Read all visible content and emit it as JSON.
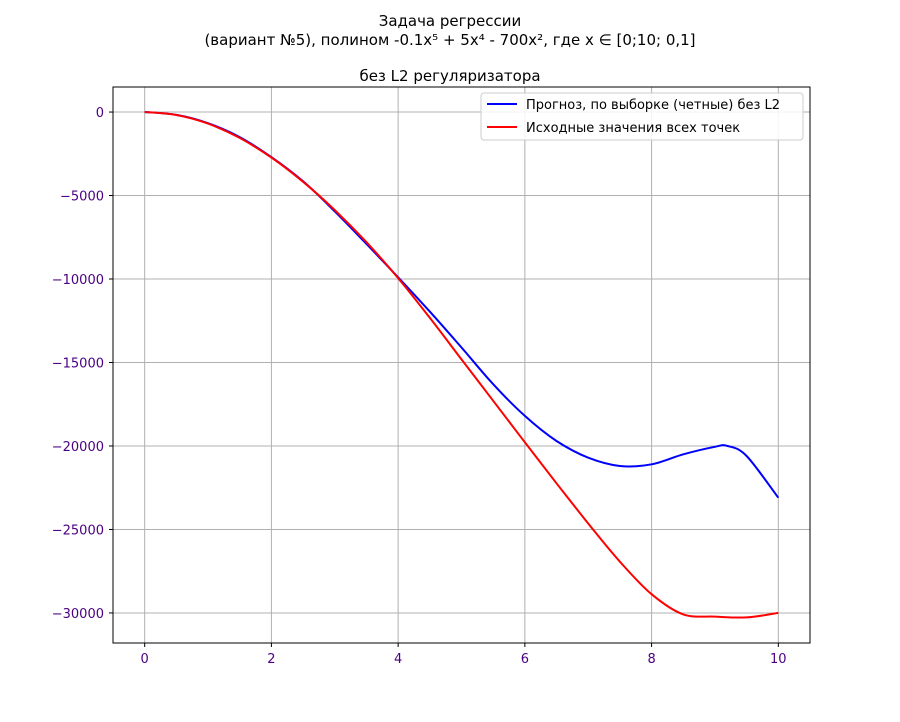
{
  "figure": {
    "title_line1": "Задача регрессии",
    "title_line2": "(вариант №5), полином -0.1x⁵ + 5x⁴ - 700x², где x ∈ [0;10; 0,1]"
  },
  "chart_data": {
    "type": "line",
    "title": "без L2 регуляризатора",
    "xlabel": "",
    "ylabel": "",
    "xlim": [
      -0.5,
      10.5
    ],
    "ylim": [
      -31800,
      1500
    ],
    "x_ticks": [
      0,
      2,
      4,
      6,
      8,
      10
    ],
    "x_tick_labels": [
      "0",
      "2",
      "4",
      "6",
      "8",
      "10"
    ],
    "y_ticks": [
      0,
      -5000,
      -10000,
      -15000,
      -20000,
      -25000,
      -30000
    ],
    "y_tick_labels": [
      "0",
      "−5000",
      "−10000",
      "−15000",
      "−20000",
      "−25000",
      "−30000"
    ],
    "grid": true,
    "legend_position": "top-right",
    "tick_color": "#4b0082",
    "series": [
      {
        "name": "Прогноз, по выборке (четные) без L2",
        "color": "#0000ff",
        "x": [
          0,
          0.5,
          1,
          1.5,
          2,
          2.5,
          3,
          3.5,
          4,
          4.5,
          5,
          5.5,
          6,
          6.5,
          7,
          7.5,
          8,
          8.5,
          9,
          9.2,
          9.5,
          10
        ],
        "y": [
          0,
          -170,
          -670,
          -1500,
          -2700,
          -4150,
          -5950,
          -7900,
          -9900,
          -11950,
          -14100,
          -16300,
          -18200,
          -19700,
          -20700,
          -21200,
          -21100,
          -20500,
          -20050,
          -20000,
          -20600,
          -23100
        ]
      },
      {
        "name": "Исходные значения всех точек",
        "color": "#ff0000",
        "x": [
          0,
          0.5,
          1,
          1.5,
          2,
          2.5,
          3,
          3.5,
          4,
          4.5,
          5,
          5.5,
          6,
          6.5,
          7,
          7.5,
          8,
          8.5,
          9,
          9.5,
          10
        ],
        "y": [
          0,
          -175,
          -695,
          -1551,
          -2723,
          -4175,
          -5874,
          -7797,
          -9946,
          -12324,
          -14812,
          -17292,
          -19778,
          -22233,
          -24643,
          -26930,
          -28877,
          -30087,
          -30220,
          -30269,
          -30000
        ]
      }
    ]
  }
}
